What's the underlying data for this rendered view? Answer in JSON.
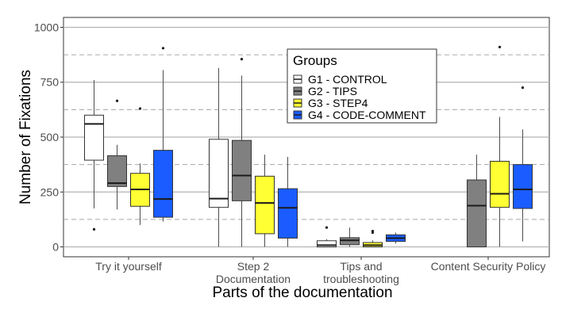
{
  "chart_data": {
    "type": "boxplot",
    "xlabel": "Parts of the documentation",
    "ylabel": "Number of Fixations",
    "ylim": [
      -45,
      1045
    ],
    "yticks": [
      0,
      250,
      500,
      750,
      1000
    ],
    "ytick_labels": [
      "0",
      "250",
      "500",
      "750",
      "1000"
    ],
    "grid": {
      "major": true,
      "minor_dashed": true,
      "minor_values": [
        125,
        375,
        625,
        875
      ]
    },
    "categories": [
      [
        "Try it yourself"
      ],
      [
        "Step 2",
        "Documentation"
      ],
      [
        "Tips and",
        "troubleshooting"
      ],
      [
        "Content Security Policy"
      ]
    ],
    "legend": {
      "title": "Groups",
      "placement": "top-center",
      "entries": [
        "G1 - CONTROL",
        "G2 - TIPS",
        "G3 - STEP4",
        "G4 - CODE-COMMENT"
      ]
    },
    "series": [
      {
        "name": "G1 - CONTROL",
        "color": "#ffffff",
        "boxes": [
          {
            "min": 175,
            "q1": 395,
            "median": 560,
            "q3": 600,
            "max": 760,
            "outliers": [
              80
            ]
          },
          {
            "min": 0,
            "q1": 180,
            "median": 220,
            "q3": 490,
            "max": 815,
            "outliers": []
          },
          {
            "min": 0,
            "q1": 0,
            "median": 8,
            "q3": 28,
            "max": 35,
            "outliers": [
              88
            ]
          },
          null
        ]
      },
      {
        "name": "G2 - TIPS",
        "color": "#808080",
        "boxes": [
          {
            "min": 170,
            "q1": 275,
            "median": 290,
            "q3": 415,
            "max": 465,
            "outliers": [
              665
            ]
          },
          {
            "min": 0,
            "q1": 210,
            "median": 325,
            "q3": 485,
            "max": 780,
            "outliers": [
              855
            ]
          },
          {
            "min": 0,
            "q1": 10,
            "median": 30,
            "q3": 42,
            "max": 88,
            "outliers": []
          },
          {
            "min": 0,
            "q1": 0,
            "median": 188,
            "q3": 305,
            "max": 420,
            "outliers": []
          }
        ]
      },
      {
        "name": "G3 - STEP4",
        "color": "#ffff33",
        "boxes": [
          {
            "min": 100,
            "q1": 185,
            "median": 262,
            "q3": 335,
            "max": 380,
            "outliers": [
              630
            ]
          },
          {
            "min": 0,
            "q1": 60,
            "median": 200,
            "q3": 322,
            "max": 420,
            "outliers": []
          },
          {
            "min": 0,
            "q1": 0,
            "median": 8,
            "q3": 20,
            "max": 30,
            "outliers": [
              65,
              72
            ]
          },
          {
            "min": 0,
            "q1": 180,
            "median": 242,
            "q3": 390,
            "max": 592,
            "outliers": [
              910
            ]
          }
        ]
      },
      {
        "name": "G4 - CODE-COMMENT",
        "color": "#1a5cff",
        "boxes": [
          {
            "min": 115,
            "q1": 135,
            "median": 218,
            "q3": 440,
            "max": 805,
            "outliers": [
              905
            ]
          },
          {
            "min": 0,
            "q1": 40,
            "median": 178,
            "q3": 265,
            "max": 410,
            "outliers": []
          },
          {
            "min": 15,
            "q1": 25,
            "median": 40,
            "q3": 55,
            "max": 65,
            "outliers": []
          },
          {
            "min": 25,
            "q1": 175,
            "median": 262,
            "q3": 375,
            "max": 535,
            "outliers": [
              725
            ]
          }
        ]
      }
    ]
  }
}
